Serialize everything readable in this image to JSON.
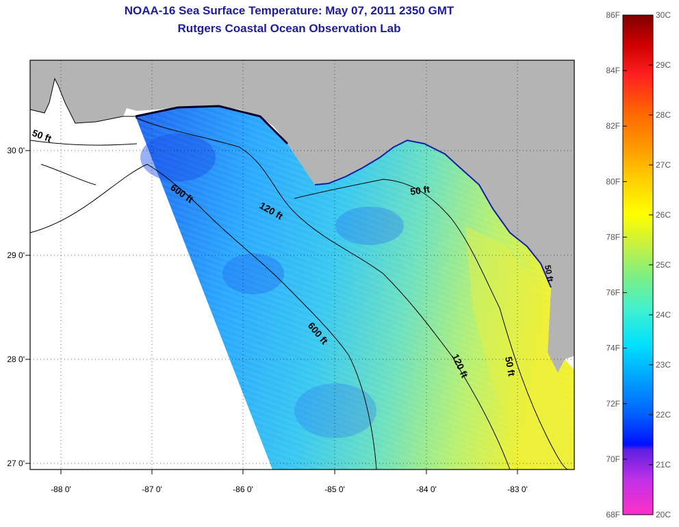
{
  "title_line1": "NOAA-16 Sea Surface Temperature:  May 07, 2011 2350 GMT",
  "title_line2": "Rutgers Coastal Ocean Observation Lab",
  "lat_labels": [
    "30 0'",
    "29 0'",
    "28 0'",
    "27 0'"
  ],
  "lon_labels": [
    "-88 0'",
    "-87 0'",
    "-86 0'",
    "-85 0'",
    "-84 0'",
    "-83 0'"
  ],
  "contour_labels": [
    "50 ft",
    "600 ft",
    "120 ft",
    "50 ft",
    "600 ft",
    "120 ft",
    "50 ft",
    "50 ft"
  ],
  "colorbar": {
    "f_labels": [
      "86F",
      "84F",
      "82F",
      "80F",
      "78F",
      "76F",
      "74F",
      "72F",
      "70F",
      "68F"
    ],
    "c_labels": [
      "30C",
      "29C",
      "28C",
      "27C",
      "26C",
      "25C",
      "24C",
      "23C",
      "22C",
      "21C",
      "20C"
    ]
  },
  "colors": {
    "land": "#b4b4b4",
    "title": "#1c1ca0"
  }
}
